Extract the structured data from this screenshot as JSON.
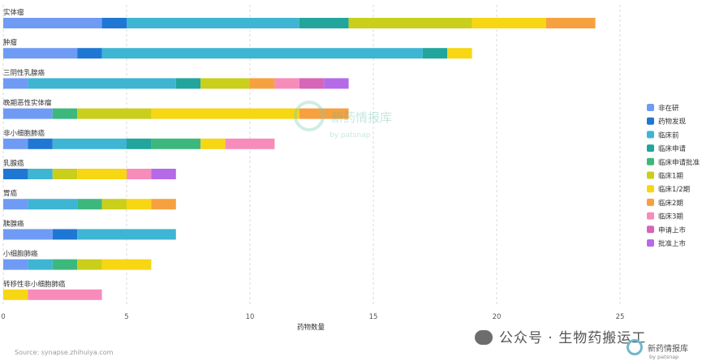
{
  "chart_data": {
    "type": "bar",
    "orientation": "horizontal",
    "stacked": true,
    "xlabel": "药物数量",
    "xlim": [
      0,
      25
    ],
    "xticks": [
      0,
      5,
      10,
      15,
      20,
      25
    ],
    "grid": "vertical-dashed",
    "legend_position": "right",
    "categories": [
      "实体瘤",
      "肿瘤",
      "三阴性乳腺癌",
      "晚期恶性实体瘤",
      "非小细胞肺癌",
      "乳腺癌",
      "胃癌",
      "胰腺癌",
      "小细胞肺癌",
      "转移性非小细胞肺癌"
    ],
    "series": [
      {
        "name": "非在研",
        "color": "#6f9bf5",
        "values": [
          4,
          3,
          1,
          2,
          1,
          0,
          1,
          2,
          1,
          0
        ]
      },
      {
        "name": "药物发现",
        "color": "#1f77d4",
        "values": [
          1,
          1,
          0,
          0,
          1,
          1,
          0,
          1,
          0,
          0
        ]
      },
      {
        "name": "临床前",
        "color": "#3eb5d3",
        "values": [
          7,
          13,
          6,
          0,
          3,
          1,
          2,
          4,
          1,
          0
        ]
      },
      {
        "name": "临床申请",
        "color": "#21a59c",
        "values": [
          2,
          1,
          1,
          0,
          1,
          0,
          0,
          0,
          0,
          0
        ]
      },
      {
        "name": "临床申请批准",
        "color": "#3db87d",
        "values": [
          0,
          0,
          0,
          1,
          2,
          0,
          1,
          0,
          1,
          0
        ]
      },
      {
        "name": "临床1期",
        "color": "#c9cf1a",
        "values": [
          5,
          0,
          2,
          3,
          0,
          1,
          1,
          0,
          1,
          0
        ]
      },
      {
        "name": "临床1/2期",
        "color": "#f7d614",
        "values": [
          3,
          1,
          0,
          6,
          1,
          2,
          1,
          0,
          2,
          1
        ]
      },
      {
        "name": "临床2期",
        "color": "#f6a13f",
        "values": [
          2,
          0,
          1,
          2,
          0,
          0,
          1,
          0,
          0,
          0
        ]
      },
      {
        "name": "临床3期",
        "color": "#f78cbb",
        "values": [
          0,
          0,
          1,
          0,
          2,
          1,
          0,
          0,
          0,
          3
        ]
      },
      {
        "name": "申请上市",
        "color": "#d765b9",
        "values": [
          0,
          0,
          1,
          0,
          0,
          0,
          0,
          0,
          0,
          0
        ]
      },
      {
        "name": "批准上市",
        "color": "#b56ae8",
        "values": [
          0,
          0,
          1,
          0,
          0,
          1,
          0,
          0,
          0,
          0
        ]
      }
    ]
  },
  "source": "Source: synapse.zhihuiya.com",
  "watermark": "公众号 · 生物药搬运工",
  "center_logo": {
    "name": "新药情报库",
    "sub": "by patsnap"
  },
  "corner_logo": {
    "name": "新药情报库",
    "sub": "by patsnap"
  }
}
